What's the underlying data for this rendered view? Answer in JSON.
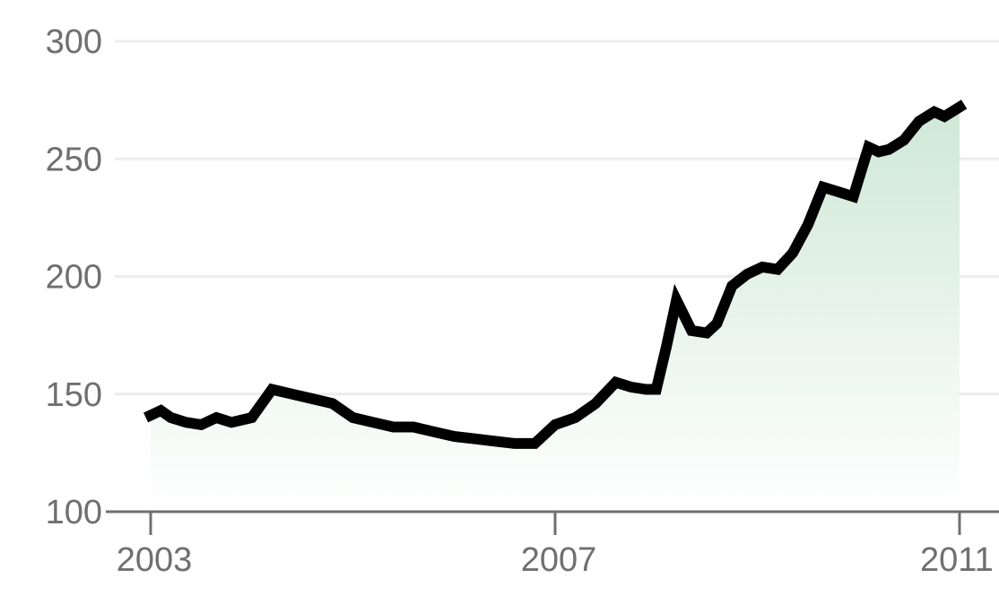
{
  "chart_data": {
    "type": "area",
    "title": "",
    "xlabel": "",
    "ylabel": "",
    "ylim": [
      100,
      300
    ],
    "xlim": [
      2003.0,
      2011.0
    ],
    "y_ticks": [
      "100",
      "150",
      "200",
      "250",
      "300"
    ],
    "x_ticks": [
      "2003",
      "2007",
      "2011"
    ],
    "grid": true,
    "legend": "none",
    "colors": {
      "line": "#000000",
      "fill_top": "#cfe8d6",
      "fill_bottom": "#ffffff",
      "axis": "#6f6f6f",
      "grid": "#ececec",
      "tick_text": "#6f6f6f"
    },
    "series": [
      {
        "x": [
          2003.0,
          2003.1,
          2003.2,
          2003.35,
          2003.5,
          2003.65,
          2003.8,
          2004.0,
          2004.2,
          2004.4,
          2004.6,
          2004.8,
          2005.0,
          2005.2,
          2005.4,
          2005.6,
          2005.8,
          2006.0,
          2006.2,
          2006.4,
          2006.6,
          2006.8,
          2007.0,
          2007.2,
          2007.4,
          2007.6,
          2007.75,
          2007.9,
          2008.0,
          2008.1,
          2008.2,
          2008.35,
          2008.5,
          2008.6,
          2008.75,
          2008.9,
          2009.05,
          2009.2,
          2009.35,
          2009.5,
          2009.65,
          2009.8,
          2009.95,
          2010.1,
          2010.2,
          2010.3,
          2010.45,
          2010.6,
          2010.75,
          2010.85,
          2011.0
        ],
        "values": [
          141,
          143,
          140,
          138,
          137,
          140,
          138,
          140,
          152,
          150,
          148,
          146,
          140,
          138,
          136,
          136,
          134,
          132,
          131,
          130,
          129,
          129,
          137,
          140,
          146,
          155,
          153,
          152,
          152,
          170,
          190,
          177,
          176,
          180,
          196,
          201,
          204,
          203,
          210,
          222,
          238,
          236,
          234,
          255,
          253,
          254,
          258,
          266,
          270,
          268,
          272
        ]
      }
    ]
  }
}
